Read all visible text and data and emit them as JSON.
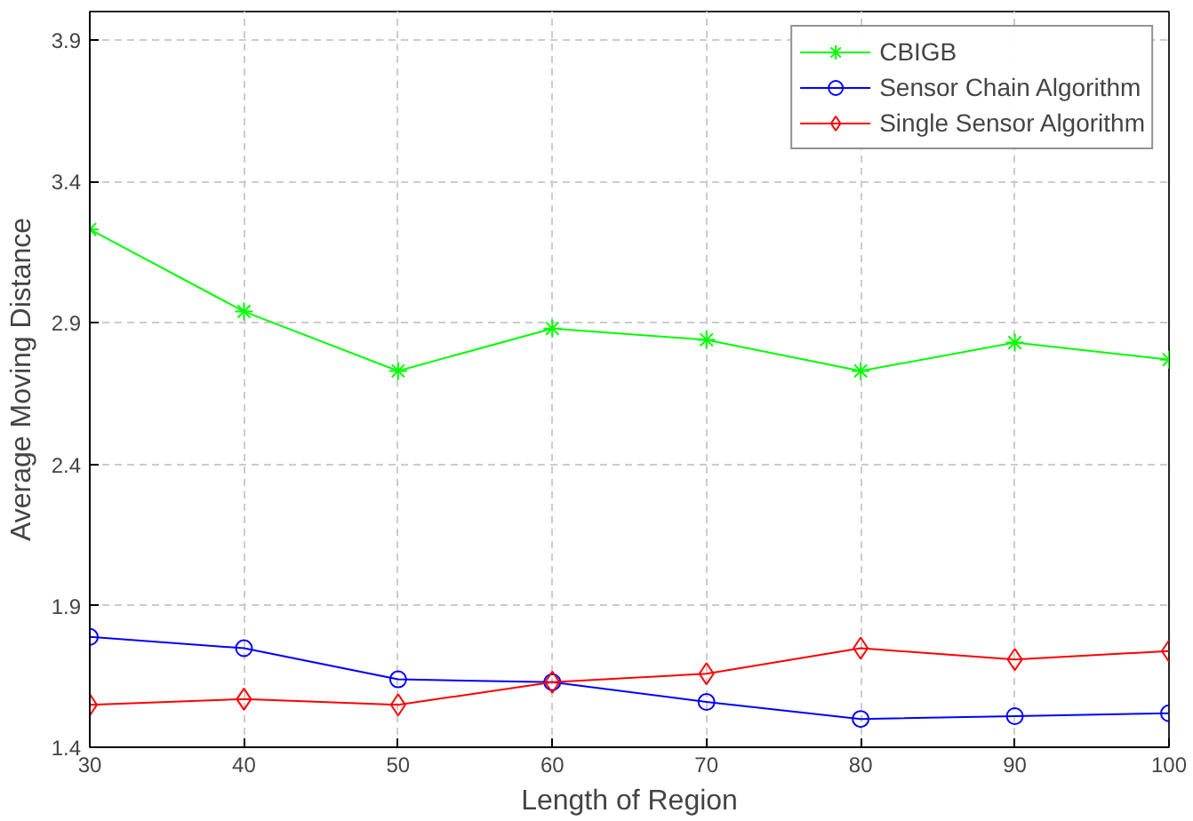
{
  "chart_data": {
    "type": "line",
    "xlabel": "Length of Region",
    "ylabel": "Average Moving Distance",
    "x": [
      30,
      40,
      50,
      60,
      70,
      80,
      90,
      100
    ],
    "series": [
      {
        "name": "CBIGB",
        "color": "#00ff00",
        "marker": "cross",
        "values": [
          3.23,
          2.94,
          2.73,
          2.88,
          2.84,
          2.73,
          2.83,
          2.77
        ]
      },
      {
        "name": "Sensor Chain Algorithm",
        "color": "#0000ff",
        "marker": "circle",
        "values": [
          1.79,
          1.75,
          1.64,
          1.63,
          1.56,
          1.5,
          1.51,
          1.52
        ]
      },
      {
        "name": "Single Sensor Algorithm",
        "color": "#ff0000",
        "marker": "diamond",
        "values": [
          1.55,
          1.57,
          1.55,
          1.63,
          1.66,
          1.75,
          1.71,
          1.74
        ]
      }
    ],
    "xlim": [
      30,
      100
    ],
    "xticks": [
      30,
      40,
      50,
      60,
      70,
      80,
      90,
      100
    ],
    "ylim": [
      1.4,
      4.0
    ],
    "yticks": [
      1.4,
      1.9,
      2.4,
      2.9,
      3.4,
      3.9
    ],
    "grid": true,
    "legend": "top right",
    "line_style": "solid"
  }
}
